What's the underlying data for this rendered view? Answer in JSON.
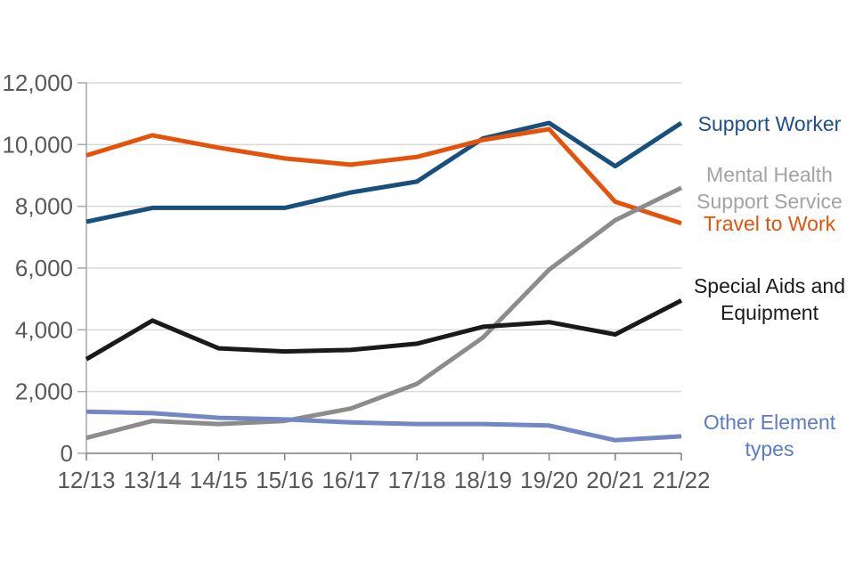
{
  "chart_data": {
    "type": "line",
    "categories": [
      "12/13",
      "13/14",
      "14/15",
      "15/16",
      "16/17",
      "17/18",
      "18/19",
      "19/20",
      "20/21",
      "21/22"
    ],
    "series": [
      {
        "name": "Support Worker",
        "color": "#174f7d",
        "values": [
          7500,
          7950,
          7950,
          7950,
          8450,
          8800,
          10200,
          10700,
          9300,
          10700
        ]
      },
      {
        "name": "Travel to Work",
        "color": "#e5530a",
        "values": [
          9650,
          10300,
          9900,
          9550,
          9350,
          9600,
          10150,
          10500,
          8150,
          7450
        ]
      },
      {
        "name": "Mental Health Support Service",
        "color": "#8c8c8c",
        "values": [
          500,
          1050,
          950,
          1050,
          1450,
          2250,
          3750,
          5950,
          7550,
          8600
        ]
      },
      {
        "name": "Special Aids and Equipment",
        "color": "#1a1a1a",
        "values": [
          3050,
          4300,
          3400,
          3300,
          3350,
          3550,
          4100,
          4250,
          3850,
          4950
        ]
      },
      {
        "name": "Other Element types",
        "color": "#7287c4",
        "values": [
          1350,
          1300,
          1150,
          1100,
          1000,
          950,
          950,
          900,
          425,
          550
        ]
      }
    ],
    "title": "",
    "xlabel": "",
    "ylabel": "",
    "ylim": [
      0,
      12000
    ],
    "ytick_step": 2000,
    "y_tick_labels": [
      "0",
      "2,000",
      "4,000",
      "6,000",
      "8,000",
      "10,000",
      "12,000"
    ],
    "grid": true,
    "legend_position": "right"
  },
  "legend": {
    "entries": [
      {
        "id": "support-worker",
        "color": "#1d4f8c",
        "lines": [
          "Support Worker"
        ]
      },
      {
        "id": "mental-health",
        "color": "#a3a3a3",
        "lines": [
          "Mental Health",
          "Support Service"
        ]
      },
      {
        "id": "travel-to-work",
        "color": "#e5530a",
        "lines": [
          "Travel to Work"
        ]
      },
      {
        "id": "special-aids",
        "color": "#1a1a1a",
        "lines": [
          "Special Aids and",
          "Equipment"
        ]
      },
      {
        "id": "other-element",
        "color": "#5b7ac9",
        "lines": [
          "Other Element",
          "types"
        ]
      }
    ]
  },
  "axis_style": {
    "tick_text_color": "#595959",
    "gridline_color": "#d9d9d9",
    "y_axis_color": "#a6a6a6",
    "x_axis_color": "#7f7f7f"
  }
}
